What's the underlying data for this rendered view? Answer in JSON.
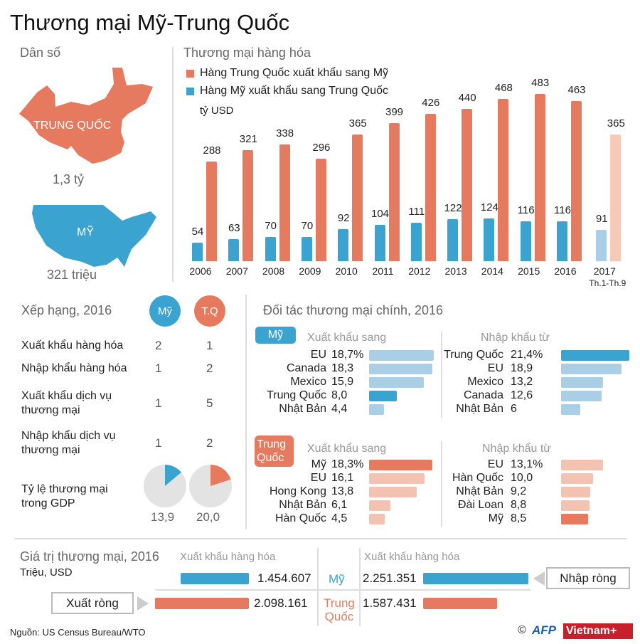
{
  "title": "Thương mại Mỹ-Trung Quốc",
  "colors": {
    "us": "#3ba3d0",
    "us_light": "#a9cfe6",
    "china": "#e57a5e",
    "china_light": "#f4c2b0",
    "china_2017": "#f6c9b8",
    "us_2017": "#a9cfe6"
  },
  "population": {
    "heading": "Dân số",
    "china_label": "TRUNG QUỐC",
    "china_value": "1,3 tỷ",
    "us_label": "MỸ",
    "us_value": "321 triệu"
  },
  "chart_data": {
    "type": "bar",
    "title": "Thương mại hàng hóa",
    "unit": "tỷ USD",
    "categories": [
      "2006",
      "2007",
      "2008",
      "2009",
      "2010",
      "2011",
      "2012",
      "2013",
      "2014",
      "2015",
      "2016",
      "2017"
    ],
    "category_note": {
      "2017": "Th.1-Th.9"
    },
    "series": [
      {
        "name": "Hàng Trung Quốc xuất khẩu sang Mỹ",
        "color": "#e57a5e",
        "values": [
          288,
          321,
          338,
          296,
          365,
          399,
          426,
          440,
          468,
          483,
          463,
          365
        ]
      },
      {
        "name": "Hàng Mỹ xuất khẩu sang Trung Quốc",
        "color": "#3ba3d0",
        "values": [
          54,
          63,
          70,
          70,
          92,
          104,
          111,
          122,
          124,
          116,
          116,
          91
        ]
      }
    ],
    "ylim": [
      0,
      483
    ],
    "grid": false,
    "legend": "top-left"
  },
  "ranking": {
    "heading": "Xếp hạng, 2016",
    "col_us": "Mỹ",
    "col_china": "T.Q",
    "rows": [
      {
        "label": [
          "Xuất khẩu hàng hóa"
        ],
        "us": "2",
        "china": "1"
      },
      {
        "label": [
          "Nhập khẩu hàng hóa"
        ],
        "us": "1",
        "china": "2"
      },
      {
        "label": [
          "Xuất khẩu dịch vụ",
          "thương mại"
        ],
        "us": "1",
        "china": "5"
      },
      {
        "label": [
          "Nhập khẩu dịch vụ",
          "thương mại"
        ],
        "us": "1",
        "china": "2"
      }
    ],
    "gdp_label": [
      "Tỷ lệ thương mại",
      "trong GDP"
    ],
    "gdp_us": "13,9",
    "gdp_china": "20,0",
    "gdp_us_pct": 13.9,
    "gdp_china_pct": 20.0
  },
  "partners": {
    "heading": "Đối tác thương mại chính, 2016",
    "us_badge": "Mỹ",
    "china_badge": [
      "Trung",
      "Quốc"
    ],
    "export_heading": "Xuất khẩu sang",
    "import_heading": "Nhập khẩu từ",
    "us_exports": [
      {
        "name": "EU",
        "label": "18,7%",
        "value": 18.7
      },
      {
        "name": "Canada",
        "label": "18,3",
        "value": 18.3
      },
      {
        "name": "Mexico",
        "label": "15,9",
        "value": 15.9
      },
      {
        "name": "Trung Quốc",
        "label": "8,0",
        "value": 8.0,
        "highlight": true
      },
      {
        "name": "Nhật Bản",
        "label": "4,4",
        "value": 4.4
      }
    ],
    "us_imports": [
      {
        "name": "Trung Quốc",
        "label": "21,4%",
        "value": 21.4,
        "highlight": true
      },
      {
        "name": "EU",
        "label": "18,9",
        "value": 18.9
      },
      {
        "name": "Mexico",
        "label": "13,2",
        "value": 13.2
      },
      {
        "name": "Canada",
        "label": "12,6",
        "value": 12.6
      },
      {
        "name": "Nhật Bản",
        "label": "6",
        "value": 6
      }
    ],
    "china_exports": [
      {
        "name": "Mỹ",
        "label": "18,3%",
        "value": 18.3,
        "highlight": true
      },
      {
        "name": "EU",
        "label": "16,1",
        "value": 16.1
      },
      {
        "name": "Hong Kong",
        "label": "13,8",
        "value": 13.8
      },
      {
        "name": "Nhật Bản",
        "label": "6,1",
        "value": 6.1
      },
      {
        "name": "Hàn Quốc",
        "label": "4,5",
        "value": 4.5
      }
    ],
    "china_imports": [
      {
        "name": "EU",
        "label": "13,1%",
        "value": 13.1
      },
      {
        "name": "Hàn Quốc",
        "label": "10,0",
        "value": 10.0
      },
      {
        "name": "Nhật Bản",
        "label": "9,2",
        "value": 9.2
      },
      {
        "name": "Đài Loan",
        "label": "8,8",
        "value": 8.8
      },
      {
        "name": "Mỹ",
        "label": "8,5",
        "value": 8.5,
        "highlight": true
      }
    ]
  },
  "trade_value": {
    "heading": "Giá trị thương mại, 2016",
    "unit": "Triệu, USD",
    "col_left": "Xuất khẩu hàng hóa",
    "col_right": "Xuất khẩu hàng hóa",
    "us_label": "Mỹ",
    "china_label": [
      "Trung",
      "Quốc"
    ],
    "us_left": "1.454.607",
    "us_right": "2.251.351",
    "china_left": "2.098.161",
    "china_right": "1.587.431",
    "us_left_value": 1454607,
    "us_right_value": 2251351,
    "china_left_value": 2098161,
    "china_right_value": 1587431,
    "net_import": "Nhập ròng",
    "net_export": "Xuất ròng"
  },
  "footer": {
    "source": "Nguồn: US Census Bureau/WTO",
    "copyright": "©",
    "logo_afp": "AFP",
    "logo_vietnam": "Vietnam+"
  }
}
